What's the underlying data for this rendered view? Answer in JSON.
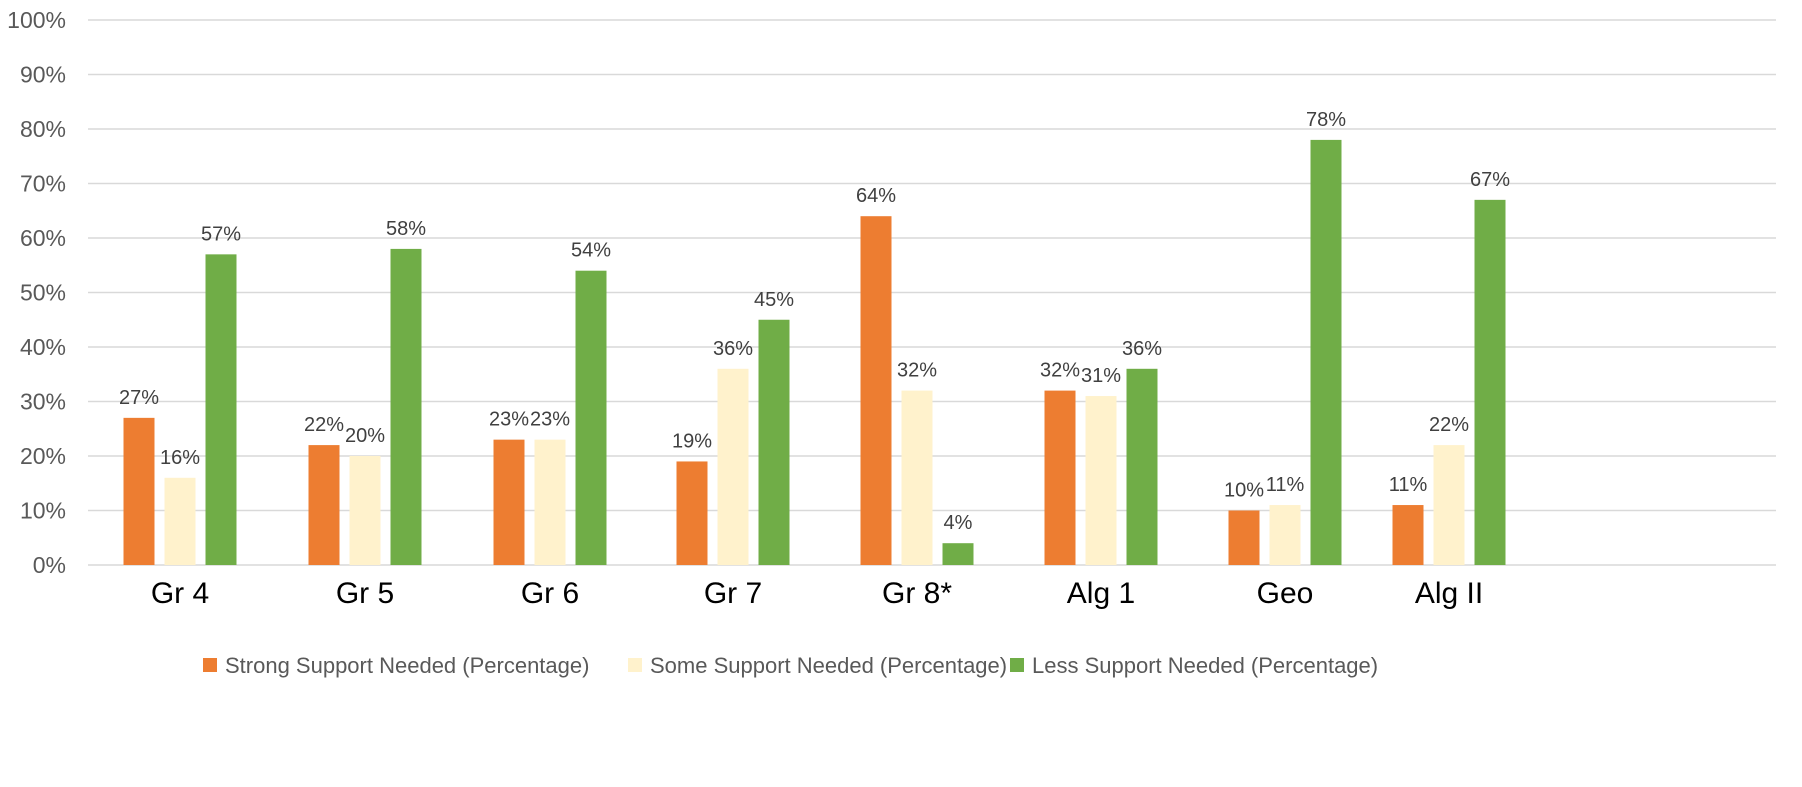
{
  "chart_data": {
    "type": "bar",
    "categories": [
      "Gr 4",
      "Gr 5",
      "Gr 6",
      "Gr 7",
      "Gr 8*",
      "Alg 1",
      "Geo",
      "Alg II"
    ],
    "series": [
      {
        "name": "Strong Support Needed (Percentage)",
        "color": "#ed7d31",
        "values": [
          27,
          22,
          23,
          19,
          64,
          32,
          10,
          11
        ],
        "labels": [
          "27%",
          "22%",
          "23%",
          "19%",
          "64%",
          "32%",
          "10%",
          "11%"
        ]
      },
      {
        "name": "Some Support Needed (Percentage)",
        "color": "#fff2cc",
        "values": [
          16,
          20,
          23,
          36,
          32,
          31,
          11,
          22
        ],
        "labels": [
          "16%",
          "20%",
          "23%",
          "36%",
          "32%",
          "31%",
          "11%",
          "22%"
        ]
      },
      {
        "name": "Less Support Needed (Percentage)",
        "color": "#70ad47",
        "values": [
          57,
          58,
          54,
          45,
          4,
          36,
          78,
          67
        ],
        "labels": [
          "57%",
          "58%",
          "54%",
          "45%",
          "4%",
          "36%",
          "78%",
          "67%"
        ]
      }
    ],
    "y_ticks": [
      "0%",
      "10%",
      "20%",
      "30%",
      "40%",
      "50%",
      "60%",
      "70%",
      "80%",
      "90%",
      "100%"
    ],
    "ylim": [
      0,
      100
    ],
    "grid": true,
    "legend_position": "bottom",
    "title": "",
    "xlabel": "",
    "ylabel": ""
  }
}
